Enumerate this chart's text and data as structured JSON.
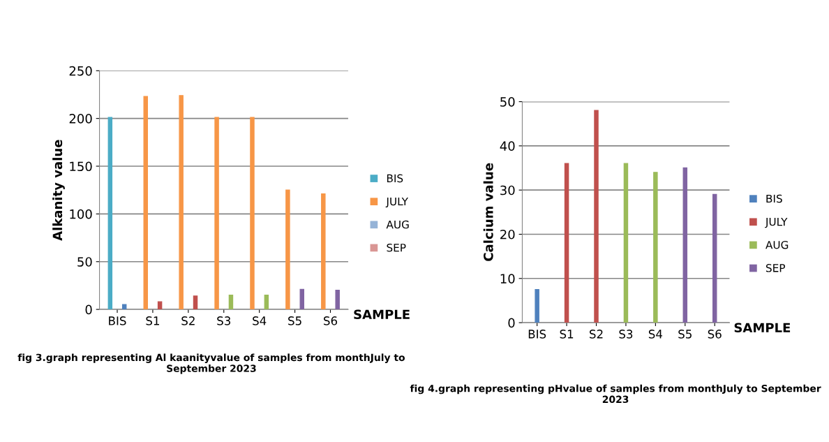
{
  "chart_data": [
    {
      "type": "bar",
      "ylabel": "Alkanity value",
      "xlabel": "SAMPLE",
      "categories": [
        "BIS",
        "S1",
        "S2",
        "S3",
        "S4",
        "S5",
        "S6"
      ],
      "series": [
        {
          "name": "BIS",
          "color": "#4bacc6",
          "values": [
            201,
            null,
            null,
            null,
            null,
            null,
            null
          ]
        },
        {
          "name": "JULY",
          "color": "#f79646",
          "values": [
            null,
            223,
            224,
            201,
            201,
            125,
            121
          ]
        },
        {
          "name": "AUG",
          "color": "#95b3d7",
          "values": [
            null,
            null,
            null,
            null,
            null,
            null,
            null
          ]
        },
        {
          "name": "SEP",
          "color": "#d99694",
          "values": [
            null,
            null,
            null,
            null,
            null,
            null,
            null
          ]
        },
        {
          "colors": [
            "#4f81bd",
            "#c0504d",
            "#c0504d",
            "#9bbb59",
            "#9bbb59",
            "#8064a2",
            "#8064a2"
          ],
          "values": [
            5,
            8,
            14,
            15,
            15,
            21,
            20
          ]
        }
      ],
      "ylim": [
        0,
        250
      ],
      "yticks": [
        0,
        50,
        100,
        150,
        200,
        250
      ],
      "grid": "y",
      "legend": "right",
      "annotations": [
        "fig 3.graph representing Al kaanityvalue of samples from monthJuly to September 2023"
      ]
    },
    {
      "type": "bar",
      "ylabel": "Calcium value",
      "xlabel": "SAMPLE",
      "categories": [
        "BIS",
        "S1",
        "S2",
        "S3",
        "S4",
        "S5",
        "S6"
      ],
      "series": [
        {
          "name": "BIS",
          "color": "#4f81bd",
          "values": [
            7.5,
            null,
            null,
            null,
            null,
            null,
            null
          ]
        },
        {
          "name": "JULY",
          "color": "#c0504d",
          "values": [
            null,
            36,
            48,
            null,
            null,
            null,
            null
          ]
        },
        {
          "name": "AUG",
          "color": "#9bbb59",
          "values": [
            null,
            null,
            null,
            36,
            34,
            null,
            null
          ]
        },
        {
          "name": "SEP",
          "color": "#8064a2",
          "values": [
            null,
            null,
            null,
            null,
            null,
            35,
            29
          ]
        }
      ],
      "ylim": [
        0,
        50
      ],
      "yticks": [
        0,
        10,
        20,
        30,
        40,
        50
      ],
      "grid": "y",
      "legend": "right",
      "annotations": [
        "fig 4.graph representing pHvalue of samples from monthJuly to September 2023"
      ]
    }
  ]
}
